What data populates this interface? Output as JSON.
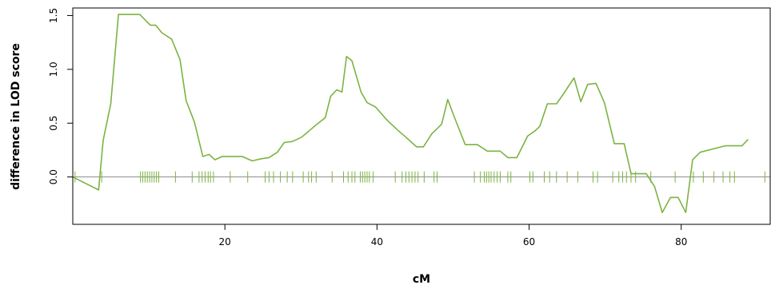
{
  "chart_data": {
    "type": "line",
    "title": "",
    "xlabel": "cM",
    "ylabel": "difference in LOD score",
    "xlim": [
      0,
      91.7
    ],
    "ylim": [
      -0.44,
      1.57
    ],
    "x_ticks": [
      20,
      40,
      60,
      80
    ],
    "y_ticks": [
      0.0,
      0.5,
      1.0,
      1.5
    ],
    "x_tick_labels": [
      "20",
      "40",
      "60",
      "80"
    ],
    "y_tick_labels": [
      "0.0",
      "0.5",
      "1.0",
      "1.5"
    ],
    "grid": false,
    "line_color": "#7cb342",
    "baseline": 0.0,
    "baseline_color": "#8c8c8c",
    "series": [
      {
        "x": [
          0.0,
          3.4,
          4.0,
          5.0,
          6.0,
          7.3,
          8.8,
          10.2,
          10.9,
          11.7,
          13.0,
          14.1,
          14.9,
          16.0,
          17.1,
          17.9,
          18.7,
          19.6,
          20.5,
          22.3,
          23.6,
          24.8,
          25.8,
          26.9,
          27.8,
          28.9,
          30.1,
          31.1,
          32.1,
          33.2,
          33.9,
          34.7,
          35.4,
          36.0,
          36.7,
          37.9,
          38.7,
          39.8,
          41.3,
          42.8,
          43.8,
          45.2,
          46.1,
          47.2,
          48.5,
          49.3,
          50.2,
          51.6,
          53.2,
          54.5,
          56.2,
          57.2,
          58.4,
          59.8,
          60.8,
          61.4,
          62.4,
          63.6,
          64.6,
          65.9,
          66.8,
          67.7,
          68.8,
          69.9,
          71.2,
          72.5,
          73.4,
          74.4,
          75.4,
          76.5,
          77.5,
          78.6,
          79.6,
          80.6,
          81.5,
          82.5,
          85.8,
          87.0,
          88.0,
          88.8
        ],
        "y": [
          0.0,
          -0.12,
          0.34,
          0.68,
          1.51,
          1.51,
          1.51,
          1.41,
          1.41,
          1.34,
          1.28,
          1.09,
          0.71,
          0.51,
          0.19,
          0.21,
          0.16,
          0.19,
          0.19,
          0.19,
          0.15,
          0.17,
          0.18,
          0.23,
          0.32,
          0.33,
          0.37,
          0.43,
          0.49,
          0.55,
          0.75,
          0.81,
          0.79,
          1.12,
          1.08,
          0.79,
          0.69,
          0.65,
          0.53,
          0.43,
          0.37,
          0.28,
          0.28,
          0.4,
          0.49,
          0.72,
          0.55,
          0.3,
          0.3,
          0.24,
          0.24,
          0.18,
          0.18,
          0.38,
          0.43,
          0.47,
          0.68,
          0.68,
          0.78,
          0.92,
          0.7,
          0.86,
          0.87,
          0.69,
          0.31,
          0.31,
          0.03,
          0.03,
          0.03,
          -0.09,
          -0.33,
          -0.19,
          -0.19,
          -0.33,
          0.16,
          0.23,
          0.29,
          0.29,
          0.29,
          0.35
        ]
      }
    ],
    "markers": [
      0.3,
      3.8,
      8.9,
      9.2,
      9.5,
      9.8,
      10.1,
      10.4,
      10.7,
      11.0,
      11.3,
      13.5,
      15.7,
      16.6,
      17.0,
      17.4,
      17.8,
      18.1,
      18.5,
      20.7,
      23.0,
      25.3,
      25.8,
      26.4,
      27.3,
      28.2,
      28.9,
      30.3,
      31.0,
      31.4,
      32.0,
      34.1,
      35.6,
      36.2,
      36.7,
      37.1,
      37.8,
      38.1,
      38.4,
      38.7,
      39.0,
      39.5,
      42.4,
      43.3,
      43.8,
      44.2,
      44.6,
      45.0,
      45.4,
      46.2,
      47.5,
      47.9,
      52.8,
      53.6,
      54.1,
      54.4,
      54.7,
      55.0,
      55.4,
      55.8,
      56.2,
      57.2,
      57.6,
      60.1,
      60.5,
      62.0,
      62.7,
      63.6,
      65.0,
      66.4,
      68.4,
      69.0,
      71.0,
      71.8,
      72.3,
      72.8,
      73.4,
      74.0,
      76.0,
      79.2,
      81.6,
      82.9,
      84.3,
      85.5,
      86.4,
      87.0,
      91.0
    ]
  }
}
